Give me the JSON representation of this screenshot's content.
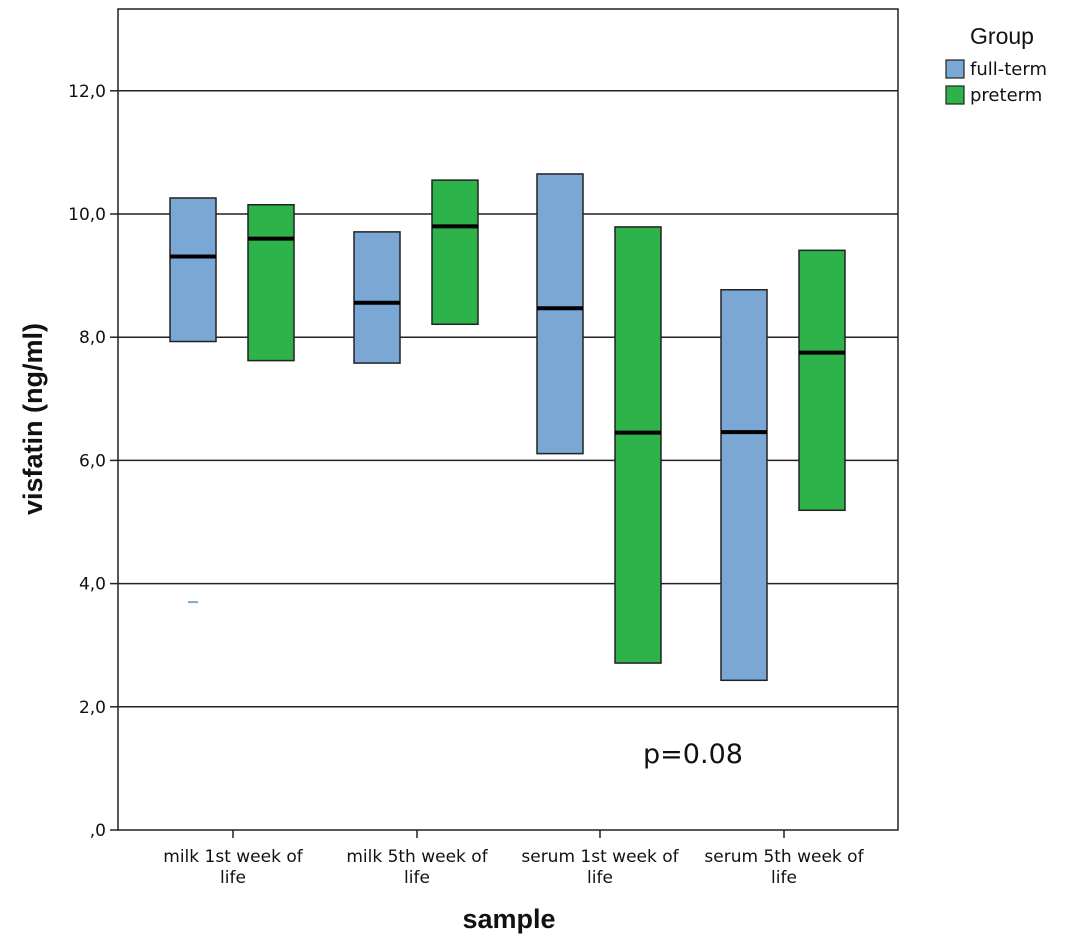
{
  "chart_data": {
    "type": "box",
    "xlabel": "sample",
    "ylabel": "visfatin (ng/ml)",
    "ylim": [
      0,
      13.3
    ],
    "yticks": [
      0,
      2,
      4,
      6,
      8,
      10,
      12
    ],
    "ytick_labels": [
      ",0",
      "2,0",
      "4,0",
      "6,0",
      "8,0",
      "10,0",
      "12,0"
    ],
    "grid": true,
    "categories": [
      [
        "milk 1st week of",
        "life"
      ],
      [
        "milk 5th week of",
        "life"
      ],
      [
        "serum 1st week of",
        "life"
      ],
      [
        "serum 5th week of",
        "life"
      ]
    ],
    "legend": {
      "title": "Group",
      "position": "top-right",
      "entries": [
        {
          "name": "full-term",
          "color": "#7BA7D4"
        },
        {
          "name": "preterm",
          "color": "#2DB34A"
        }
      ]
    },
    "series": [
      {
        "name": "full-term",
        "color": "#7BA7D4",
        "boxes": [
          {
            "q1": 7.93,
            "median": 9.31,
            "q3": 10.26
          },
          {
            "q1": 7.58,
            "median": 8.56,
            "q3": 9.71
          },
          {
            "q1": 6.11,
            "median": 8.47,
            "q3": 10.65
          },
          {
            "q1": 2.43,
            "median": 6.46,
            "q3": 8.77
          }
        ],
        "outliers": [
          {
            "category": 0,
            "value": 3.7
          }
        ]
      },
      {
        "name": "preterm",
        "color": "#2DB34A",
        "boxes": [
          {
            "q1": 7.62,
            "median": 9.6,
            "q3": 10.15
          },
          {
            "q1": 8.21,
            "median": 9.8,
            "q3": 10.55
          },
          {
            "q1": 2.71,
            "median": 6.45,
            "q3": 9.79
          },
          {
            "q1": 5.19,
            "median": 7.75,
            "q3": 9.41
          }
        ]
      }
    ],
    "annotations": [
      {
        "text": "p=0.08",
        "x": 2.5,
        "y": 1.25
      }
    ]
  }
}
